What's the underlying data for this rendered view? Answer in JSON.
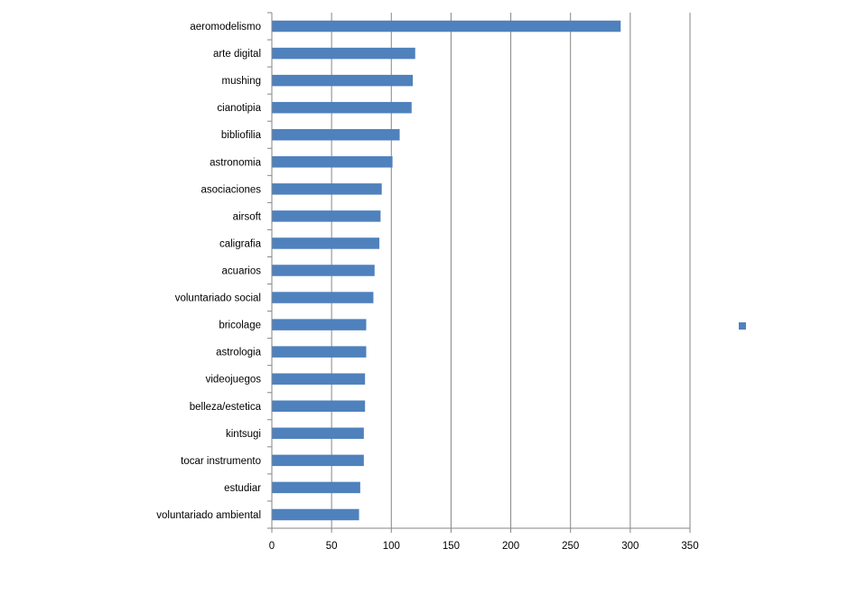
{
  "chart_data": {
    "type": "bar",
    "orientation": "horizontal",
    "title": "",
    "xlabel": "",
    "ylabel": "",
    "categories": [
      "aeromodelismo",
      "arte digital",
      "mushing",
      "cianotipia",
      "bibliofilia",
      "astronomia",
      "asociaciones",
      "airsoft",
      "caligrafia",
      "acuarios",
      "voluntariado social",
      "bricolage",
      "astrologia",
      "videojuegos",
      "belleza/estetica",
      "kintsugi",
      "tocar instrumento",
      "estudiar",
      "voluntariado ambiental"
    ],
    "series": [
      {
        "name": "",
        "color": "#4F81BD",
        "values": [
          292,
          120,
          118,
          117,
          107,
          101,
          92,
          91,
          90,
          86,
          85,
          79,
          79,
          78,
          78,
          77,
          77,
          74,
          73
        ]
      }
    ],
    "xlim": [
      0,
      350
    ],
    "xticks": [
      "0",
      "50",
      "100",
      "150",
      "200",
      "250",
      "300",
      "350"
    ],
    "grid": "vertical",
    "legend": {
      "placement": "right",
      "entries": [
        ""
      ]
    },
    "colors": {
      "bar": "#4F81BD",
      "gridline": "#868686",
      "axis": "#868686",
      "text": "#000000"
    }
  }
}
